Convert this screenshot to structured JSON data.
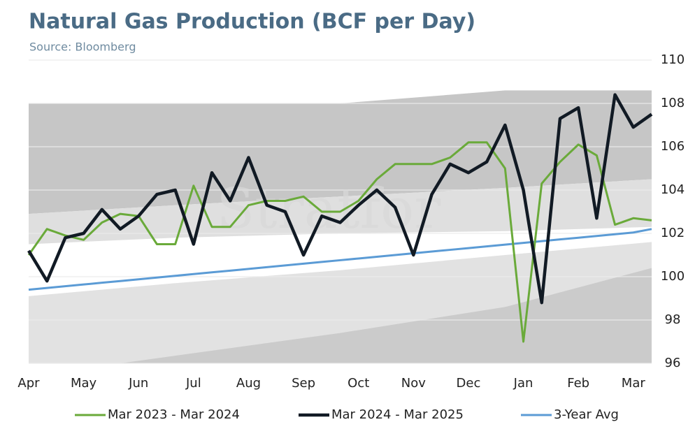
{
  "chart_data": {
    "type": "line",
    "title": "Natural Gas Production (BCF per Day)",
    "subtitle": "Source: Bloomberg",
    "watermark": "Stratfor",
    "categories": [
      "Apr",
      null,
      null,
      "May",
      null,
      null,
      "Jun",
      null,
      null,
      "Jul",
      null,
      null,
      "Aug",
      null,
      null,
      "Sep",
      null,
      null,
      "Oct",
      null,
      null,
      "Nov",
      null,
      null,
      "Dec",
      null,
      null,
      "Jan",
      null,
      null,
      "Feb",
      null,
      null,
      "Mar",
      null
    ],
    "ylim": [
      96,
      110
    ],
    "yticks": [
      96,
      98,
      100,
      102,
      104,
      106,
      108,
      110
    ],
    "grid": true,
    "bands": [
      {
        "color": "#c6c6c6",
        "x": [
          0,
          8,
          17,
          26,
          34
        ],
        "upper": [
          108,
          108,
          108,
          108.6,
          108.6
        ],
        "lower": [
          102.9,
          103.3,
          103.7,
          104.1,
          104.5
        ]
      },
      {
        "color": "#dfdfdf",
        "x": [
          0,
          8,
          17,
          26,
          34
        ],
        "upper": [
          102.9,
          103.3,
          103.7,
          104.1,
          104.5
        ],
        "lower": [
          101.5,
          101.8,
          102.0,
          102.1,
          102.3
        ]
      },
      {
        "color": "#e2e2e2",
        "x": [
          0,
          8,
          17,
          26,
          34
        ],
        "upper": [
          99.1,
          99.7,
          100.3,
          101.0,
          101.6
        ],
        "lower": [
          96,
          96,
          96,
          96,
          96
        ]
      },
      {
        "color": "#cbcbcb",
        "x": [
          0,
          5,
          17,
          26,
          34
        ],
        "upper": [
          96,
          96,
          97.4,
          98.6,
          100.4
        ],
        "lower": [
          96,
          96,
          96,
          96,
          96
        ]
      }
    ],
    "series": [
      {
        "name": "Mar 2023 - Mar 2024",
        "color": "#6aaa3a",
        "width": 3,
        "values": [
          101.0,
          102.2,
          101.9,
          101.7,
          102.5,
          102.9,
          102.8,
          101.5,
          101.5,
          104.2,
          102.3,
          102.3,
          103.3,
          103.5,
          103.5,
          103.7,
          103.0,
          103.0,
          103.5,
          104.5,
          105.2,
          105.2,
          105.2,
          105.5,
          106.2,
          106.2,
          105.0,
          97.0,
          104.3,
          105.3,
          106.1,
          105.6,
          102.4,
          102.7,
          102.6
        ]
      },
      {
        "name": "Mar 2024 - Mar 2025",
        "color": "#111a24",
        "width": 4.5,
        "values": [
          101.2,
          99.8,
          101.8,
          102.0,
          103.1,
          102.2,
          102.8,
          103.8,
          104.0,
          101.5,
          104.8,
          103.5,
          105.5,
          103.3,
          103.0,
          101.0,
          102.8,
          102.5,
          103.3,
          104.0,
          103.2,
          101.0,
          103.8,
          105.2,
          104.8,
          105.3,
          107.0,
          104.0,
          98.8,
          107.3,
          107.8,
          102.7,
          108.4,
          106.9,
          107.5
        ]
      },
      {
        "name": "3-Year Avg",
        "color": "#5b9bd5",
        "width": 3,
        "values": [
          99.4,
          99.48,
          99.56,
          99.64,
          99.72,
          99.8,
          99.88,
          99.96,
          100.04,
          100.12,
          100.2,
          100.28,
          100.36,
          100.44,
          100.52,
          100.6,
          100.68,
          100.76,
          100.84,
          100.92,
          101.0,
          101.08,
          101.16,
          101.24,
          101.32,
          101.4,
          101.48,
          101.56,
          101.64,
          101.72,
          101.8,
          101.88,
          101.96,
          102.04,
          102.2
        ]
      }
    ]
  }
}
